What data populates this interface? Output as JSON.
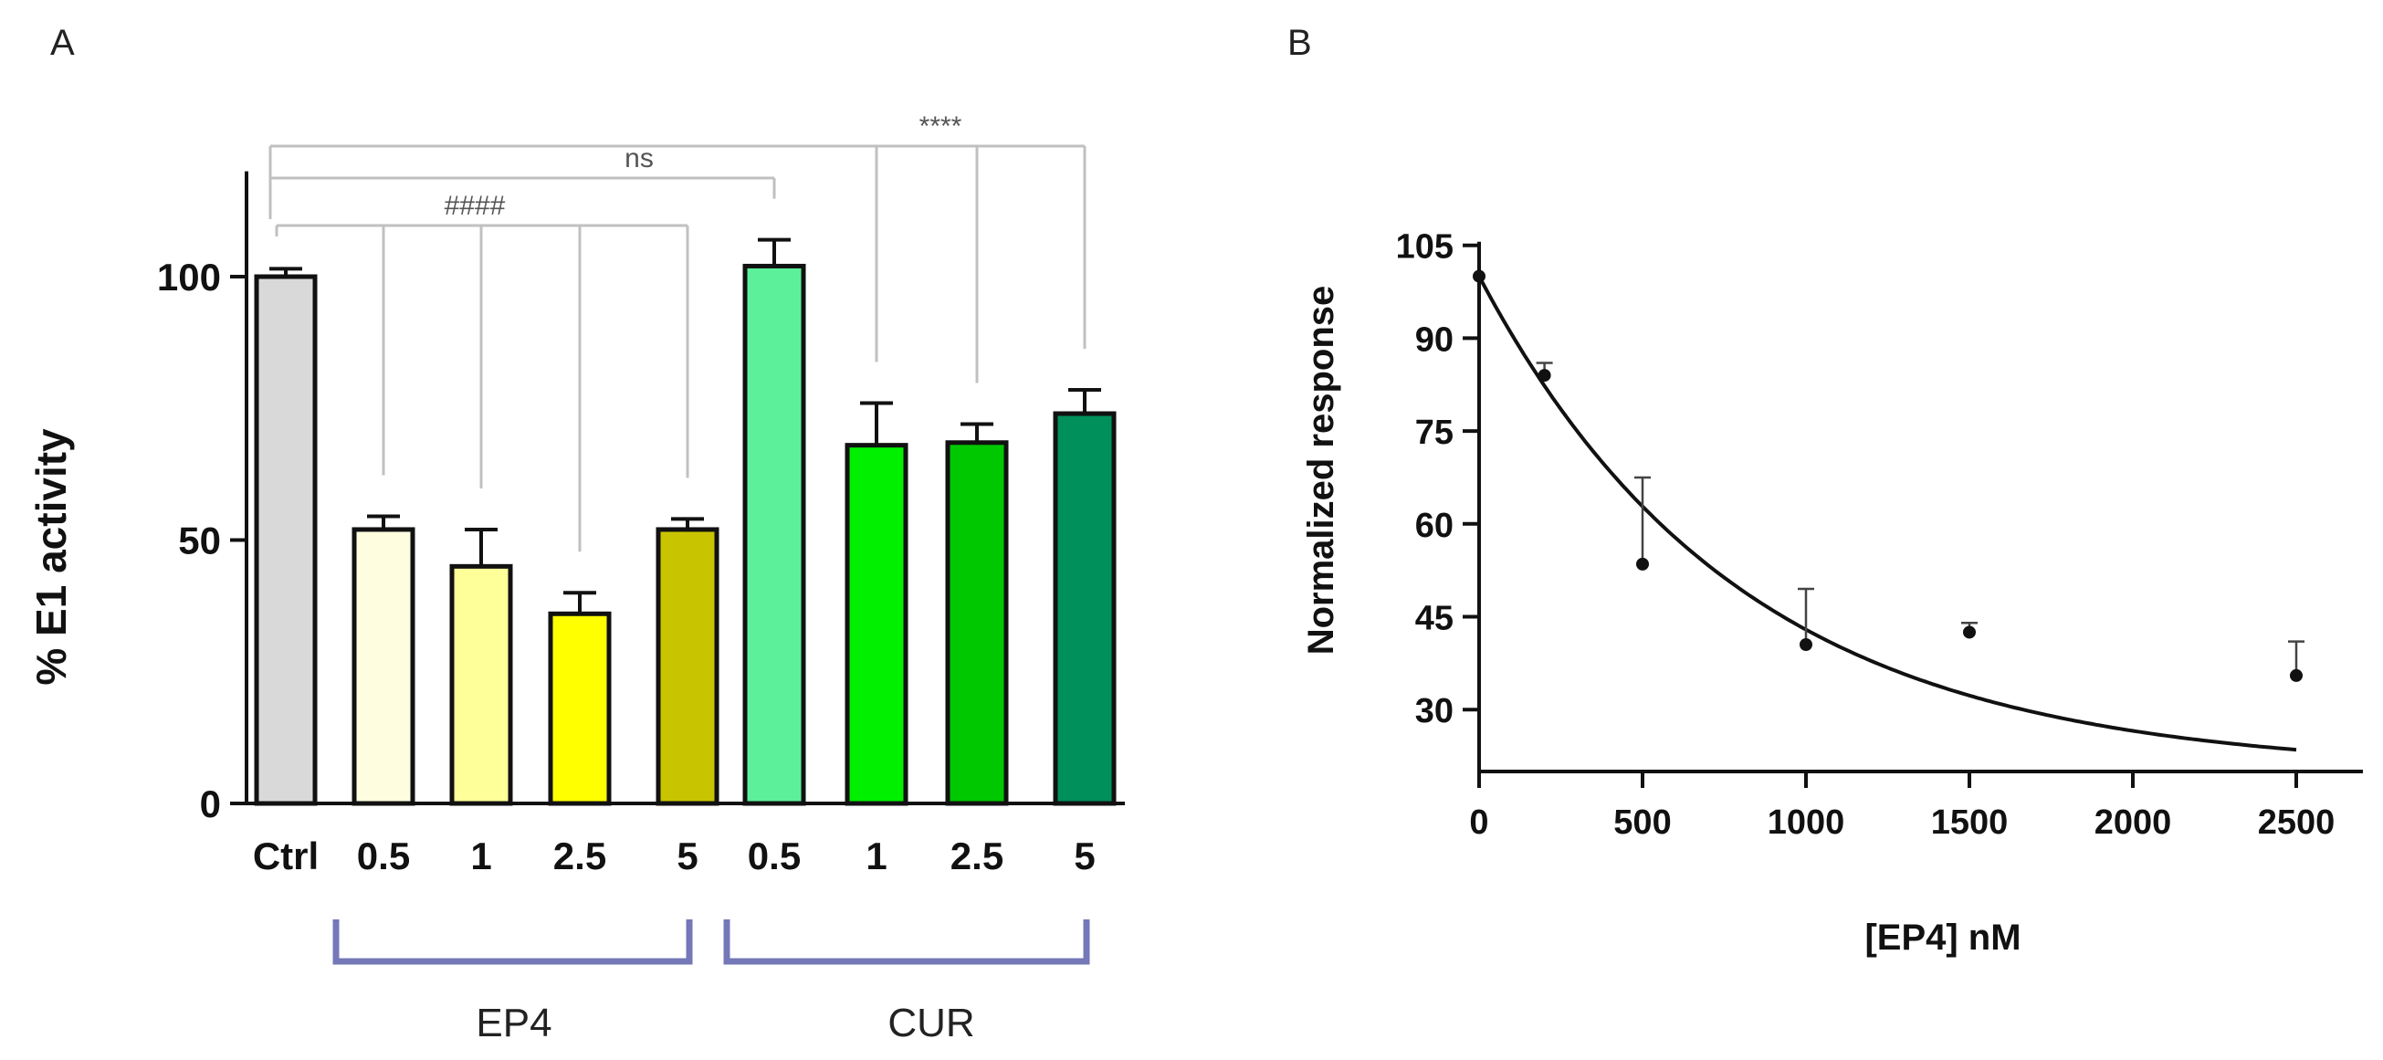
{
  "chart_data": [
    {
      "panel_label": "A",
      "type": "bar",
      "ylabel": "% E1 activity",
      "xlabel": "",
      "ylim": [
        0,
        120
      ],
      "yticks": [
        "0",
        "50",
        "100"
      ],
      "categories": [
        "Ctrl",
        "0.5",
        "1",
        "2.5",
        "5",
        "0.5",
        "1",
        "2.5",
        "5"
      ],
      "values": [
        100,
        52,
        45,
        36,
        52,
        102,
        68,
        68.5,
        74
      ],
      "errors": [
        1.5,
        2.5,
        7,
        4,
        2,
        5,
        8,
        3.5,
        4.5
      ],
      "colors": [
        "#d9d9d9",
        "#fffde0",
        "#ffff99",
        "#ffff00",
        "#c8c400",
        "#5cf09a",
        "#00f000",
        "#00c800",
        "#00905c"
      ],
      "groups": [
        {
          "label": "EP4",
          "from": 1,
          "to": 4
        },
        {
          "label": "CUR",
          "from": 5,
          "to": 8
        }
      ],
      "significance": [
        {
          "label": "####",
          "from": 0,
          "to": [
            1,
            2,
            3,
            4
          ]
        },
        {
          "label": "ns",
          "from": 0,
          "to": [
            5
          ]
        },
        {
          "label": "****",
          "from": 0,
          "to": [
            6,
            7,
            8
          ]
        }
      ]
    },
    {
      "panel_label": "B",
      "type": "scatter",
      "xlabel": "[EP4] nM",
      "ylabel": "Normalized response",
      "xlim": [
        0,
        2700
      ],
      "ylim": [
        20,
        105
      ],
      "xticks": [
        "0",
        "500",
        "1000",
        "1500",
        "2000",
        "2500"
      ],
      "yticks": [
        "30",
        "45",
        "60",
        "75",
        "90",
        "105"
      ],
      "points": [
        {
          "x": 0,
          "y": 100,
          "err": 0
        },
        {
          "x": 200,
          "y": 84,
          "err": 2
        },
        {
          "x": 500,
          "y": 53.5,
          "err": 14
        },
        {
          "x": 1000,
          "y": 40.5,
          "err": 9
        },
        {
          "x": 1500,
          "y": 42.5,
          "err": 1.5
        },
        {
          "x": 2500,
          "y": 35.5,
          "err": 5.5
        }
      ],
      "fit": {
        "model": "exponential decay",
        "top": 100,
        "plateau": 20,
        "k": 0.00125,
        "x_end": 2500
      }
    }
  ]
}
